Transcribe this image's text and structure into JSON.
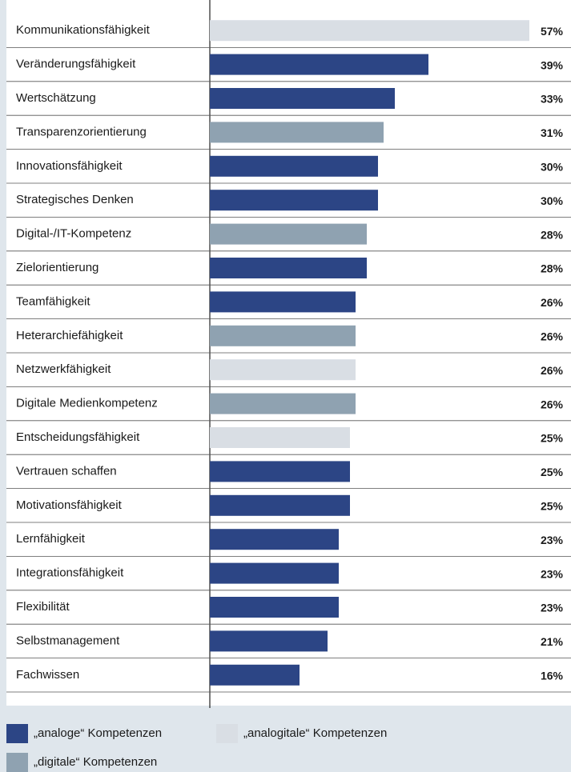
{
  "chart_data": {
    "type": "bar",
    "orientation": "horizontal",
    "categories": [
      "Kommunikationsfähigkeit",
      "Veränderungsfähigkeit",
      "Wertschätzung",
      "Transparenzorientierung",
      "Innovationsfähigkeit",
      "Strategisches Denken",
      "Digital-/IT-Kompetenz",
      "Zielorientierung",
      "Teamfähigkeit",
      "Heterarchiefähigkeit",
      "Netzwerkfähigkeit",
      "Digitale Medienkompetenz",
      "Entscheidungsfähigkeit",
      "Vertrauen schaffen",
      "Motivationsfähigkeit",
      "Lernfähigkeit",
      "Integrationsfähigkeit",
      "Flexibilität",
      "Selbstmanagement",
      "Fachwissen"
    ],
    "series": [
      {
        "name": "„analoge“ Kompetenzen",
        "color": "#2c4585",
        "values": [
          null,
          39,
          33,
          null,
          30,
          30,
          null,
          28,
          26,
          null,
          null,
          null,
          null,
          25,
          25,
          23,
          23,
          23,
          21,
          16
        ],
        "value_labels": [
          null,
          "39%",
          "33%",
          null,
          "30%",
          "30%",
          null,
          "28%",
          "26%",
          null,
          null,
          null,
          null,
          "25%",
          "25%",
          "23%",
          "23%",
          "23%",
          "21%",
          "16%"
        ]
      },
      {
        "name": "„analogitale“ Kompetenzen",
        "color": "#d9dee4",
        "values": [
          57,
          null,
          null,
          null,
          null,
          null,
          null,
          null,
          null,
          null,
          26,
          null,
          25,
          null,
          null,
          null,
          null,
          null,
          null,
          null
        ],
        "value_labels": [
          "57%",
          null,
          null,
          null,
          null,
          null,
          null,
          null,
          null,
          null,
          "26%",
          null,
          "25%",
          null,
          null,
          null,
          null,
          null,
          null,
          null
        ]
      },
      {
        "name": "„digitale“ Kompetenzen",
        "color": "#8fa2b1",
        "values": [
          null,
          null,
          null,
          31,
          null,
          null,
          28,
          null,
          null,
          26,
          null,
          26,
          null,
          null,
          null,
          null,
          null,
          null,
          null,
          null
        ],
        "value_labels": [
          null,
          null,
          null,
          "31%",
          null,
          null,
          "28%",
          null,
          null,
          "26%",
          null,
          "26%",
          null,
          null,
          null,
          null,
          null,
          null,
          null,
          null
        ]
      }
    ]
  }
}
